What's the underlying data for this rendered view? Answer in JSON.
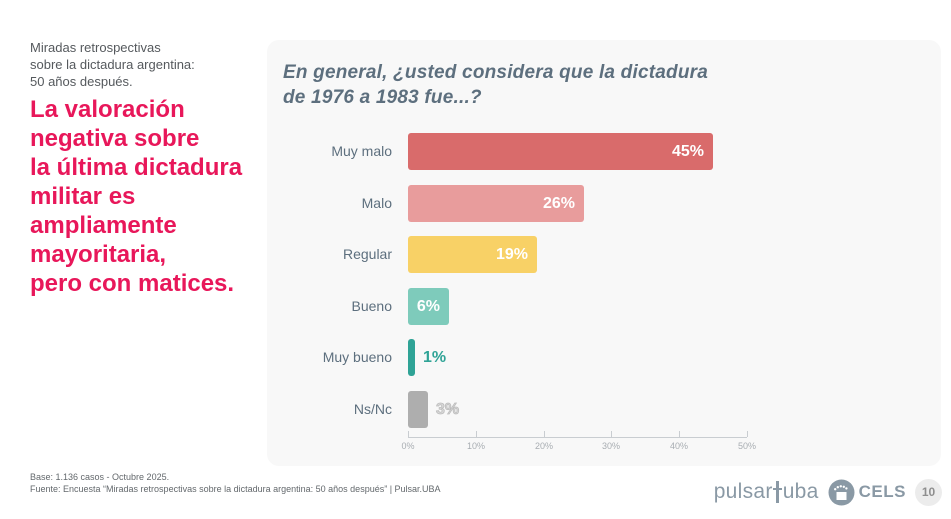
{
  "slide": {
    "kicker": "Miradas retrospectivas\nsobre la dictadura argentina:\n50 años después.",
    "headline": "La valoración\nnegativa sobre\nla última dictadura\nmilitar es\nampliamente\nmayoritaria,\npero con matices.",
    "footer": {
      "base": "Base: 1.136 casos - Octubre 2025.",
      "fuente": "Fuente: Encuesta “Miradas retrospectivas sobre la dictadura argentina: 50 años después” | Pulsar.UBA"
    },
    "page_number": "10",
    "logos": {
      "pulsar_left": "pulsar",
      "pulsar_right": "uba",
      "cels": "CELS"
    }
  },
  "chart_data": {
    "type": "bar",
    "orientation": "horizontal",
    "title": "En general, ¿usted considera que la dictadura\nde 1976 a 1983 fue...?",
    "categories": [
      "Muy malo",
      "Malo",
      "Regular",
      "Bueno",
      "Muy bueno",
      "Ns/Nc"
    ],
    "values": [
      45,
      26,
      19,
      6,
      1,
      3
    ],
    "value_labels": [
      "45%",
      "26%",
      "19%",
      "6%",
      "1%",
      "3%"
    ],
    "bar_colors": [
      "#d96b6b",
      "#e89c9c",
      "#f8d166",
      "#7ecbbb",
      "#2fa396",
      "#aeaeae"
    ],
    "value_label_inside": [
      true,
      true,
      true,
      true,
      false,
      false
    ],
    "value_label_colors": [
      "#ffffff",
      "#ffffff",
      "#ffffff",
      "#ffffff",
      "#2fa396",
      "#d9d9d9"
    ],
    "xlabel": "",
    "ylabel": "",
    "xlim": [
      0,
      50
    ],
    "x_ticks": [
      "0%",
      "10%",
      "20%",
      "30%",
      "40%",
      "50%"
    ],
    "grid": false,
    "legend": false
  },
  "colors": {
    "accent_pink": "#e8175a",
    "slate_text": "#5d6f7e",
    "panel_bg": "#f8f8f8",
    "axis_gray": "#a8adb2",
    "logo_slate": "#8a99a5"
  }
}
